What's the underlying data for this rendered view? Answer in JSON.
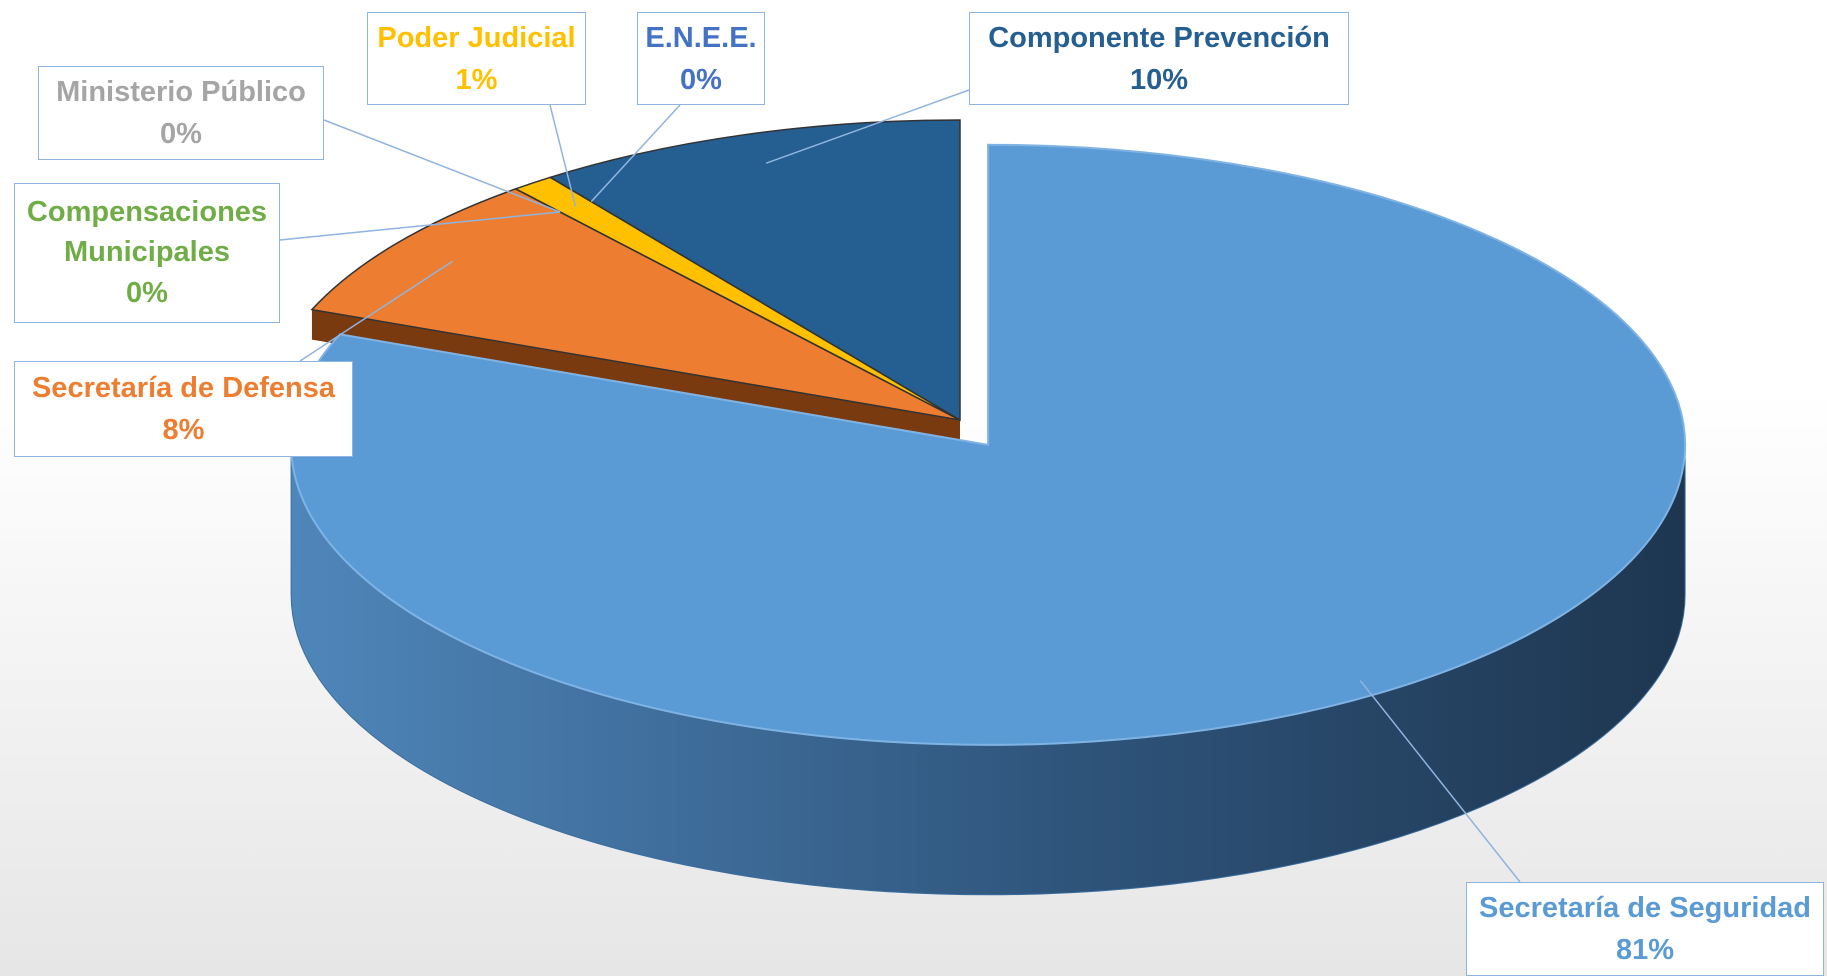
{
  "chart_data": {
    "type": "pie",
    "categories": [
      "Secretaría de Seguridad",
      "Secretaría de Defensa",
      "Compensaciones Municipales",
      "Ministerio Público",
      "Poder Judicial",
      "E.N.E.E.",
      "Componente Prevención"
    ],
    "values": [
      81,
      8,
      0,
      0,
      1,
      0,
      10
    ],
    "value_labels": [
      "81%",
      "8%",
      "0%",
      "0%",
      "1%",
      "0%",
      "10%"
    ],
    "colors": [
      "#5b9bd5",
      "#ed7d31",
      "#70ad47",
      "#a5a5a5",
      "#ffc000",
      "#4472c4",
      "#255e91"
    ]
  }
}
